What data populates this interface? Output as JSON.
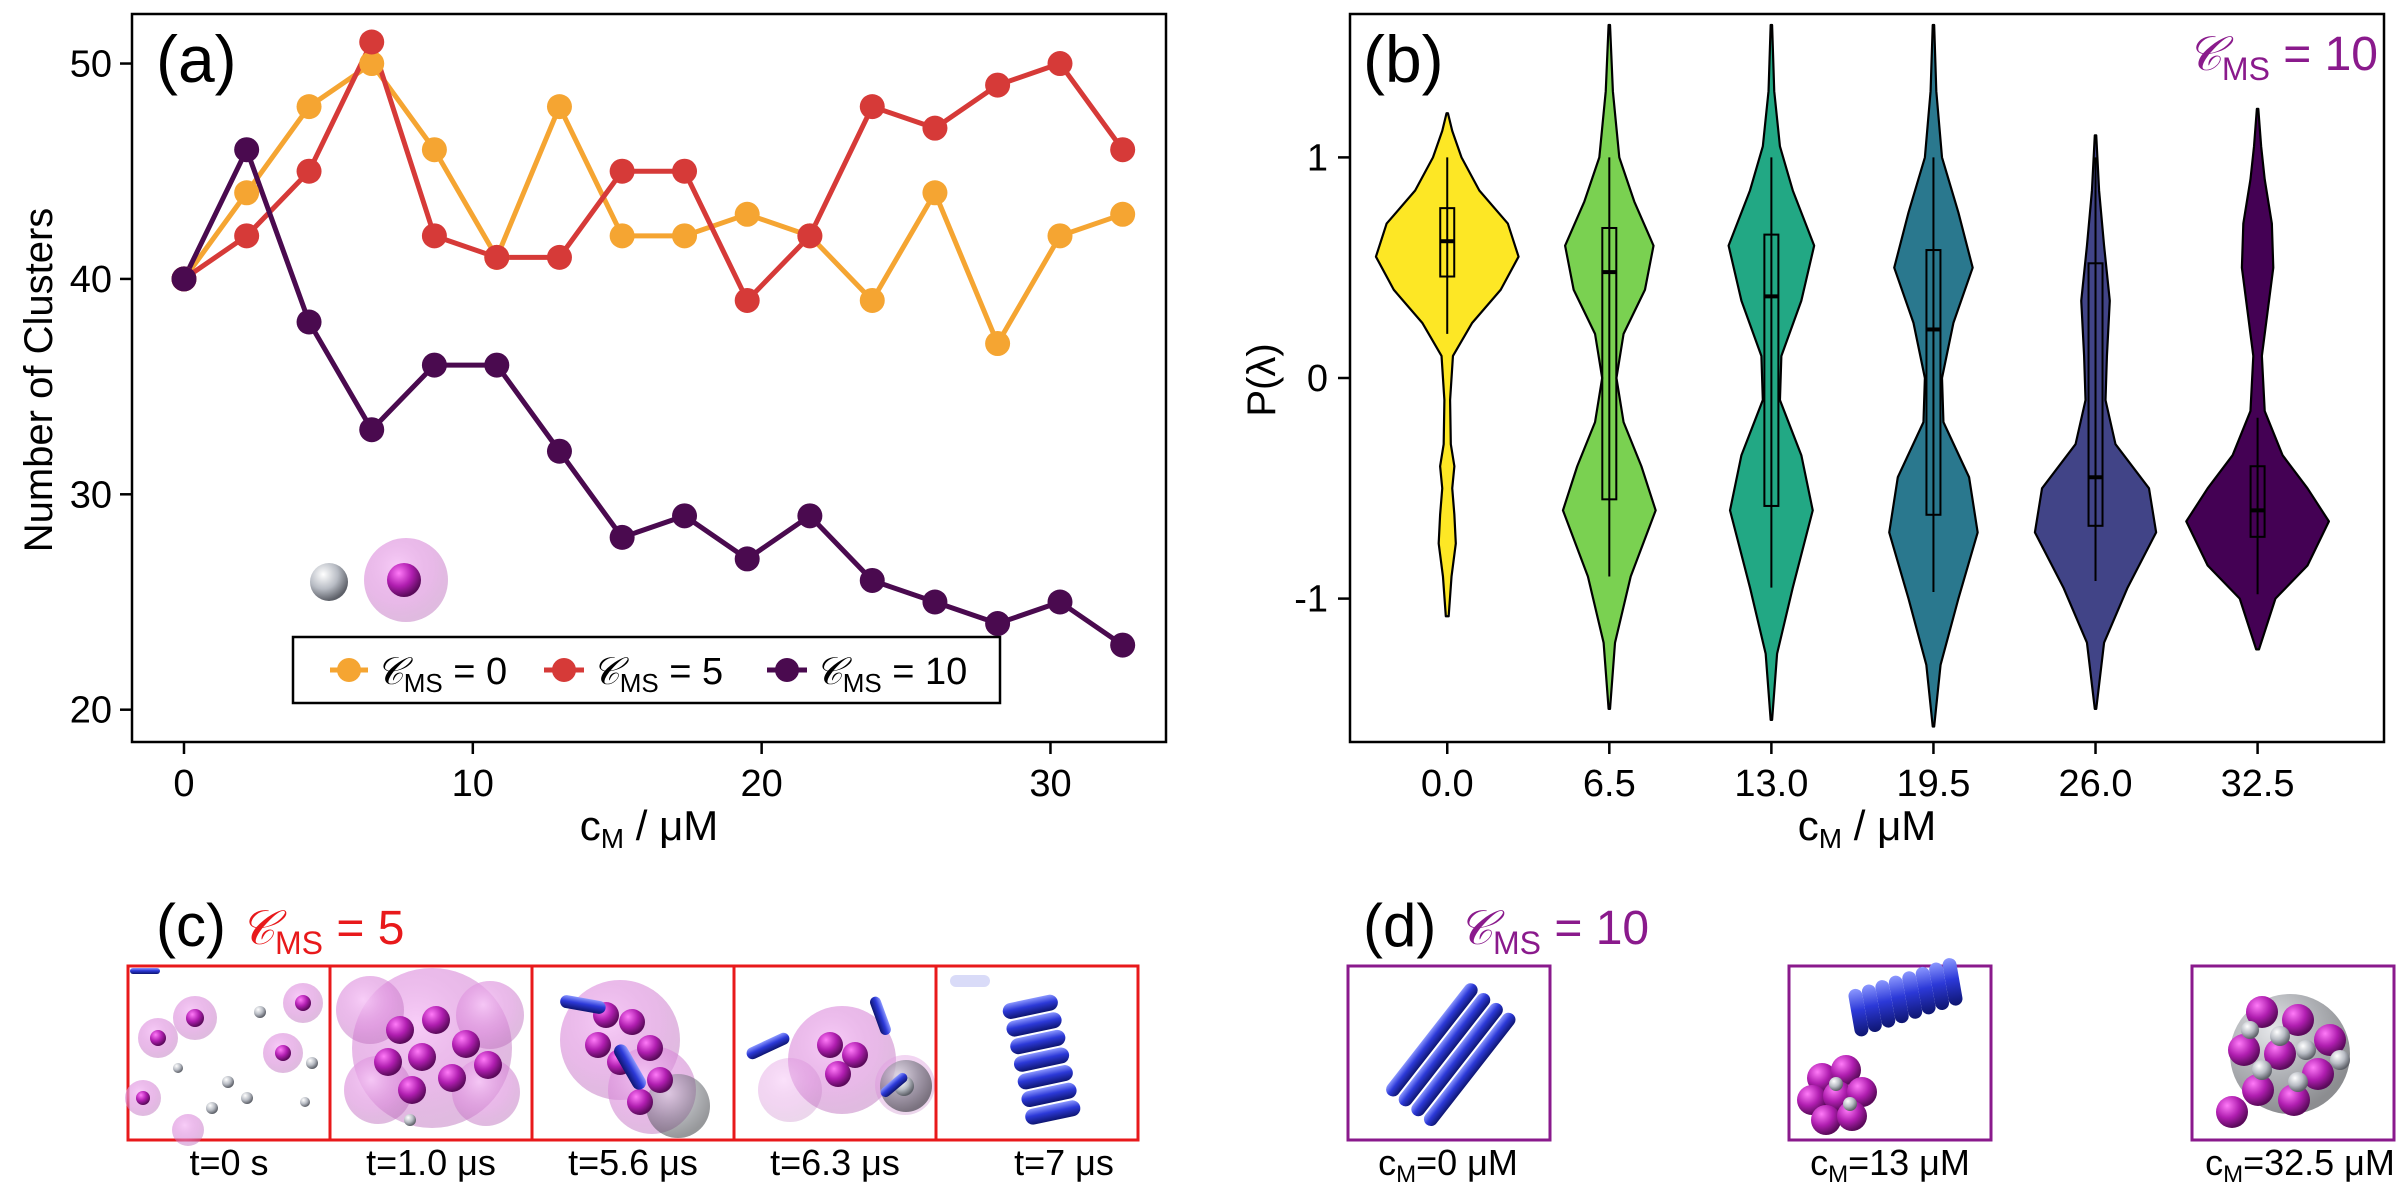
{
  "colors": {
    "cms0": "#f5a532",
    "cms5": "#d63a38",
    "cms10": "#4a0a4f",
    "red_frame": "#e8191b",
    "purple_frame": "#8a1a8c",
    "violin_fills": [
      "#fde725",
      "#7ad151",
      "#22a884",
      "#2a788e",
      "#414487",
      "#440154"
    ],
    "rod": "#2c39d8",
    "sphere": "#a21ca5"
  },
  "chart_data": [
    {
      "panel": "a",
      "type": "line",
      "panel_label": "(a)",
      "xlabel_main": "c",
      "xlabel_sub": "M",
      "xlabel_rest": " / μM",
      "ylabel": "Number of Clusters",
      "xlim": [
        -1.8,
        34.0
      ],
      "ylim": [
        18.5,
        52.3
      ],
      "xticks": [
        0,
        10,
        20,
        30
      ],
      "yticks": [
        20,
        30,
        40,
        50
      ],
      "x": [
        0.0,
        2.17,
        4.33,
        6.5,
        8.67,
        10.83,
        13.0,
        15.17,
        17.33,
        19.5,
        21.67,
        23.83,
        26.0,
        28.17,
        30.33,
        32.5
      ],
      "legend_position": "bottom-center",
      "series": [
        {
          "name_sym": "𝒞",
          "name_sub": "MS",
          "name_rest": " = 0",
          "color_key": "cms0",
          "values": [
            40,
            44,
            48,
            50,
            46,
            41,
            48,
            42,
            42,
            43,
            42,
            39,
            44,
            37,
            42,
            43
          ]
        },
        {
          "name_sym": "𝒞",
          "name_sub": "MS",
          "name_rest": " = 5",
          "color_key": "cms5",
          "values": [
            40,
            42,
            45,
            51,
            42,
            41,
            41,
            45,
            45,
            39,
            42,
            48,
            47,
            49,
            50,
            46
          ]
        },
        {
          "name_sym": "𝒞",
          "name_sub": "MS",
          "name_rest": " = 10",
          "color_key": "cms10",
          "values": [
            40,
            46,
            38,
            33,
            36,
            36,
            32,
            28,
            29,
            27,
            29,
            26,
            25,
            24,
            25,
            23
          ]
        }
      ]
    },
    {
      "panel": "b",
      "type": "violin",
      "panel_label": "(b)",
      "annotation_sym": "𝒞",
      "annotation_sub": "MS",
      "annotation_rest": " = 10",
      "xlabel_main": "c",
      "xlabel_sub": "M",
      "xlabel_rest": " / μM",
      "ylabel": "P(λ)",
      "ylim": [
        -1.65,
        1.65
      ],
      "yticks": [
        1,
        0,
        -1
      ],
      "ytick_labels": [
        "1",
        "0",
        "-1"
      ],
      "categories": [
        "0.0",
        "6.5",
        "13.0",
        "19.5",
        "26.0",
        "32.5"
      ],
      "violins": [
        {
          "min": -1.08,
          "max": 1.2,
          "median": 0.62,
          "q1": 0.46,
          "q3": 0.77,
          "whisker_low": 0.2,
          "whisker_high": 1.0,
          "density": [
            [
              -1.08,
              0.02
            ],
            [
              -0.9,
              0.06
            ],
            [
              -0.75,
              0.12
            ],
            [
              -0.62,
              0.1
            ],
            [
              -0.5,
              0.07
            ],
            [
              -0.4,
              0.1
            ],
            [
              -0.3,
              0.05
            ],
            [
              -0.1,
              0.04
            ],
            [
              0.1,
              0.08
            ],
            [
              0.25,
              0.35
            ],
            [
              0.4,
              0.75
            ],
            [
              0.55,
              1.0
            ],
            [
              0.7,
              0.85
            ],
            [
              0.85,
              0.45
            ],
            [
              1.0,
              0.2
            ],
            [
              1.12,
              0.07
            ],
            [
              1.2,
              0.01
            ]
          ]
        },
        {
          "min": -1.5,
          "max": 1.6,
          "median": 0.48,
          "q1": -0.55,
          "q3": 0.68,
          "whisker_low": -0.9,
          "whisker_high": 1.0,
          "density": [
            [
              -1.5,
              0.01
            ],
            [
              -1.2,
              0.08
            ],
            [
              -0.9,
              0.3
            ],
            [
              -0.6,
              0.65
            ],
            [
              -0.4,
              0.45
            ],
            [
              -0.2,
              0.2
            ],
            [
              0.0,
              0.1
            ],
            [
              0.2,
              0.2
            ],
            [
              0.4,
              0.5
            ],
            [
              0.6,
              0.62
            ],
            [
              0.8,
              0.35
            ],
            [
              1.0,
              0.14
            ],
            [
              1.3,
              0.05
            ],
            [
              1.6,
              0.01
            ]
          ]
        },
        {
          "min": -1.55,
          "max": 1.6,
          "median": 0.37,
          "q1": -0.58,
          "q3": 0.65,
          "whisker_low": -0.95,
          "whisker_high": 1.0,
          "density": [
            [
              -1.55,
              0.01
            ],
            [
              -1.25,
              0.08
            ],
            [
              -0.95,
              0.3
            ],
            [
              -0.6,
              0.58
            ],
            [
              -0.35,
              0.42
            ],
            [
              -0.1,
              0.12
            ],
            [
              0.1,
              0.14
            ],
            [
              0.35,
              0.42
            ],
            [
              0.6,
              0.6
            ],
            [
              0.85,
              0.3
            ],
            [
              1.05,
              0.12
            ],
            [
              1.3,
              0.04
            ],
            [
              1.6,
              0.01
            ]
          ]
        },
        {
          "min": -1.58,
          "max": 1.6,
          "median": 0.22,
          "q1": -0.62,
          "q3": 0.58,
          "whisker_low": -0.97,
          "whisker_high": 1.0,
          "density": [
            [
              -1.58,
              0.01
            ],
            [
              -1.3,
              0.1
            ],
            [
              -1.0,
              0.35
            ],
            [
              -0.7,
              0.62
            ],
            [
              -0.45,
              0.5
            ],
            [
              -0.2,
              0.14
            ],
            [
              0.0,
              0.12
            ],
            [
              0.25,
              0.28
            ],
            [
              0.5,
              0.55
            ],
            [
              0.75,
              0.35
            ],
            [
              1.0,
              0.12
            ],
            [
              1.3,
              0.04
            ],
            [
              1.6,
              0.01
            ]
          ]
        },
        {
          "min": -1.5,
          "max": 1.1,
          "median": -0.45,
          "q1": -0.67,
          "q3": 0.52,
          "whisker_low": -0.92,
          "whisker_high": 1.0,
          "density": [
            [
              -1.5,
              0.01
            ],
            [
              -1.2,
              0.12
            ],
            [
              -0.95,
              0.45
            ],
            [
              -0.7,
              0.85
            ],
            [
              -0.5,
              0.75
            ],
            [
              -0.3,
              0.28
            ],
            [
              -0.1,
              0.14
            ],
            [
              0.1,
              0.16
            ],
            [
              0.35,
              0.2
            ],
            [
              0.6,
              0.12
            ],
            [
              0.85,
              0.05
            ],
            [
              1.1,
              0.01
            ]
          ]
        },
        {
          "min": -1.23,
          "max": 1.22,
          "median": -0.6,
          "q1": -0.72,
          "q3": -0.4,
          "whisker_low": -0.98,
          "whisker_high": -0.18,
          "density": [
            [
              -1.23,
              0.02
            ],
            [
              -1.0,
              0.25
            ],
            [
              -0.85,
              0.7
            ],
            [
              -0.65,
              1.0
            ],
            [
              -0.5,
              0.7
            ],
            [
              -0.35,
              0.35
            ],
            [
              -0.15,
              0.1
            ],
            [
              0.1,
              0.06
            ],
            [
              0.3,
              0.14
            ],
            [
              0.5,
              0.22
            ],
            [
              0.7,
              0.2
            ],
            [
              0.9,
              0.1
            ],
            [
              1.05,
              0.05
            ],
            [
              1.22,
              0.01
            ]
          ]
        }
      ]
    }
  ],
  "panel_c": {
    "label": "(c)",
    "title_sym": "𝒞",
    "title_sub": "MS",
    "title_rest": " = 5",
    "frames": [
      {
        "caption": "t=0 s"
      },
      {
        "caption": "t=1.0 μs"
      },
      {
        "caption": "t=5.6 μs"
      },
      {
        "caption": "t=6.3 μs"
      },
      {
        "caption": "t=7 μs"
      }
    ]
  },
  "panel_d": {
    "label": "(d)",
    "title_sym": "𝒞",
    "title_sub": "MS",
    "title_rest": " = 10",
    "frames": [
      {
        "cap_main": "c",
        "cap_sub": "M",
        "cap_rest": "=0 μM"
      },
      {
        "cap_main": "c",
        "cap_sub": "M",
        "cap_rest": "=13 μM"
      },
      {
        "cap_main": "c",
        "cap_sub": "M",
        "cap_rest": "=32.5 μM"
      }
    ]
  }
}
